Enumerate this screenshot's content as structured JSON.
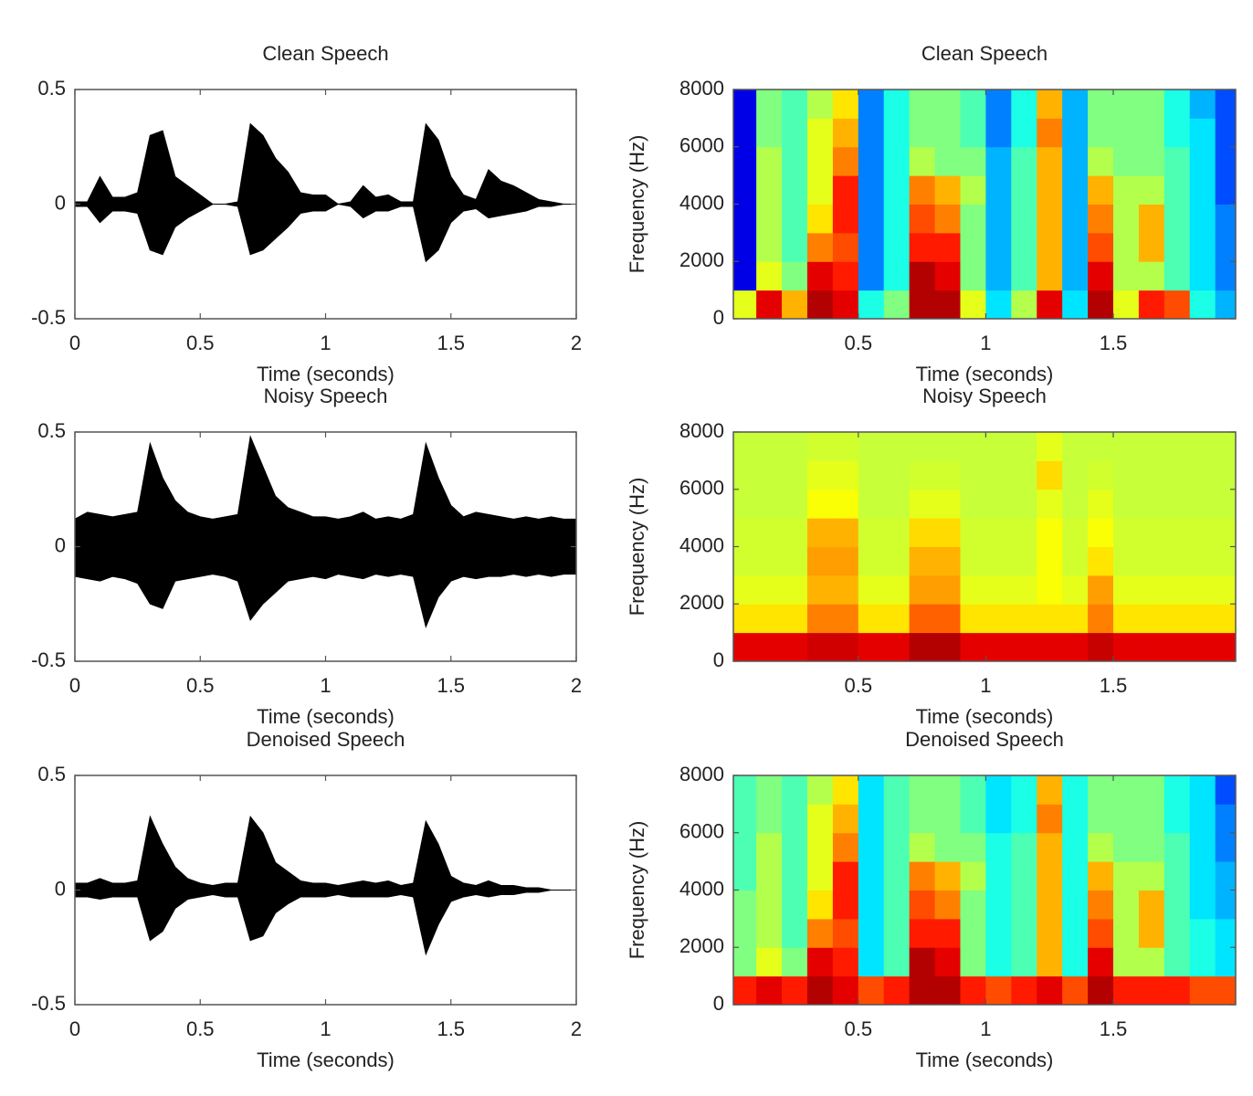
{
  "chart_data": [
    {
      "type": "area",
      "title": "Clean Speech",
      "xlabel": "Time (seconds)",
      "x": [
        0,
        0.05,
        0.1,
        0.15,
        0.2,
        0.25,
        0.3,
        0.35,
        0.4,
        0.45,
        0.5,
        0.55,
        0.6,
        0.65,
        0.7,
        0.75,
        0.8,
        0.85,
        0.9,
        0.95,
        1,
        1.05,
        1.1,
        1.15,
        1.2,
        1.25,
        1.3,
        1.35,
        1.4,
        1.45,
        1.5,
        1.55,
        1.6,
        1.65,
        1.7,
        1.75,
        1.8,
        1.85,
        1.9,
        1.95,
        2
      ],
      "series": [
        {
          "color": "#000000",
          "values": [
            0.01,
            0.01,
            0.12,
            0.03,
            0.03,
            0.05,
            0.3,
            0.32,
            0.12,
            0.08,
            0.04,
            0,
            0,
            0.01,
            0.35,
            0.3,
            0.2,
            0.14,
            0.05,
            0.04,
            0.04,
            0,
            0.01,
            0.08,
            0.03,
            0.04,
            0.01,
            0.01,
            0.35,
            0.28,
            0.12,
            0.04,
            0.02,
            0.15,
            0.1,
            0.08,
            0.05,
            0.02,
            0.01,
            0,
            0
          ]
        },
        {
          "color": "#000000",
          "values": [
            -0.01,
            -0.01,
            -0.08,
            -0.03,
            -0.03,
            -0.04,
            -0.2,
            -0.22,
            -0.1,
            -0.06,
            -0.03,
            0,
            0,
            -0.01,
            -0.22,
            -0.2,
            -0.15,
            -0.1,
            -0.04,
            -0.03,
            -0.03,
            0,
            -0.01,
            -0.06,
            -0.03,
            -0.03,
            -0.01,
            -0.01,
            -0.25,
            -0.2,
            -0.08,
            -0.03,
            -0.02,
            -0.06,
            -0.05,
            -0.04,
            -0.03,
            -0.01,
            -0.01,
            0,
            0
          ]
        }
      ],
      "xlim": [
        0,
        2
      ],
      "xticks": [
        0,
        0.5,
        1,
        1.5,
        2
      ],
      "ylim": [
        -0.5,
        0.5
      ],
      "yticks": [
        -0.5,
        0,
        0.5
      ]
    },
    {
      "type": "heatmap",
      "title": "Clean Speech",
      "xlabel": "Time (seconds)",
      "ylabel": "Frequency (Hz)",
      "colormap": "jet",
      "x": [
        0.05,
        0.15,
        0.25,
        0.35,
        0.45,
        0.55,
        0.65,
        0.75,
        0.85,
        0.95,
        1.05,
        1.15,
        1.25,
        1.35,
        1.45,
        1.55,
        1.65,
        1.75,
        1.85,
        1.95
      ],
      "y": [
        500,
        1500,
        2500,
        3500,
        4500,
        5500,
        6500,
        7500
      ],
      "values": [
        [
          0.6,
          0.1,
          0.1,
          0.1,
          0.1,
          0.1,
          0.1,
          0.1
        ],
        [
          0.9,
          0.6,
          0.55,
          0.55,
          0.55,
          0.55,
          0.5,
          0.5
        ],
        [
          0.7,
          0.5,
          0.45,
          0.45,
          0.45,
          0.45,
          0.45,
          0.45
        ],
        [
          0.95,
          0.9,
          0.75,
          0.65,
          0.6,
          0.6,
          0.6,
          0.55
        ],
        [
          0.9,
          0.85,
          0.8,
          0.85,
          0.85,
          0.75,
          0.7,
          0.65
        ],
        [
          0.4,
          0.25,
          0.25,
          0.25,
          0.25,
          0.25,
          0.25,
          0.25
        ],
        [
          0.5,
          0.4,
          0.4,
          0.4,
          0.4,
          0.4,
          0.4,
          0.4
        ],
        [
          0.95,
          0.95,
          0.85,
          0.8,
          0.75,
          0.55,
          0.5,
          0.5
        ],
        [
          0.95,
          0.9,
          0.85,
          0.75,
          0.7,
          0.5,
          0.5,
          0.5
        ],
        [
          0.6,
          0.5,
          0.5,
          0.5,
          0.55,
          0.5,
          0.45,
          0.45
        ],
        [
          0.35,
          0.3,
          0.3,
          0.3,
          0.3,
          0.3,
          0.25,
          0.25
        ],
        [
          0.55,
          0.45,
          0.45,
          0.45,
          0.45,
          0.45,
          0.4,
          0.4
        ],
        [
          0.9,
          0.7,
          0.7,
          0.7,
          0.7,
          0.7,
          0.75,
          0.7
        ],
        [
          0.35,
          0.3,
          0.3,
          0.3,
          0.3,
          0.3,
          0.3,
          0.3
        ],
        [
          0.95,
          0.9,
          0.8,
          0.75,
          0.7,
          0.55,
          0.5,
          0.5
        ],
        [
          0.6,
          0.55,
          0.55,
          0.55,
          0.55,
          0.5,
          0.5,
          0.5
        ],
        [
          0.85,
          0.55,
          0.7,
          0.7,
          0.55,
          0.5,
          0.5,
          0.5
        ],
        [
          0.8,
          0.45,
          0.45,
          0.45,
          0.45,
          0.45,
          0.4,
          0.4
        ],
        [
          0.4,
          0.35,
          0.35,
          0.35,
          0.35,
          0.35,
          0.35,
          0.3
        ],
        [
          0.3,
          0.25,
          0.25,
          0.25,
          0.2,
          0.2,
          0.2,
          0.2
        ]
      ],
      "xlim": [
        0.01,
        1.98
      ],
      "xticks": [
        0.5,
        1,
        1.5
      ],
      "ylim": [
        0,
        8000
      ],
      "yticks": [
        0,
        2000,
        4000,
        6000,
        8000
      ]
    },
    {
      "type": "area",
      "title": "Noisy Speech",
      "xlabel": "Time (seconds)",
      "x": [
        0,
        0.05,
        0.1,
        0.15,
        0.2,
        0.25,
        0.3,
        0.35,
        0.4,
        0.45,
        0.5,
        0.55,
        0.6,
        0.65,
        0.7,
        0.75,
        0.8,
        0.85,
        0.9,
        0.95,
        1,
        1.05,
        1.1,
        1.15,
        1.2,
        1.25,
        1.3,
        1.35,
        1.4,
        1.45,
        1.5,
        1.55,
        1.6,
        1.65,
        1.7,
        1.75,
        1.8,
        1.85,
        1.9,
        1.95,
        2
      ],
      "series": [
        {
          "color": "#000000",
          "values": [
            0.12,
            0.15,
            0.14,
            0.13,
            0.14,
            0.15,
            0.45,
            0.3,
            0.2,
            0.15,
            0.13,
            0.12,
            0.13,
            0.14,
            0.48,
            0.35,
            0.22,
            0.17,
            0.15,
            0.13,
            0.13,
            0.12,
            0.13,
            0.15,
            0.12,
            0.13,
            0.12,
            0.14,
            0.45,
            0.3,
            0.18,
            0.13,
            0.15,
            0.14,
            0.13,
            0.12,
            0.13,
            0.12,
            0.13,
            0.12,
            0.12
          ]
        },
        {
          "color": "#000000",
          "values": [
            -0.13,
            -0.14,
            -0.15,
            -0.13,
            -0.14,
            -0.16,
            -0.25,
            -0.27,
            -0.15,
            -0.14,
            -0.13,
            -0.12,
            -0.13,
            -0.15,
            -0.32,
            -0.25,
            -0.2,
            -0.15,
            -0.14,
            -0.13,
            -0.14,
            -0.12,
            -0.13,
            -0.14,
            -0.12,
            -0.13,
            -0.12,
            -0.13,
            -0.35,
            -0.22,
            -0.15,
            -0.13,
            -0.14,
            -0.13,
            -0.13,
            -0.12,
            -0.13,
            -0.12,
            -0.13,
            -0.12,
            -0.12
          ]
        }
      ],
      "xlim": [
        0,
        2
      ],
      "xticks": [
        0,
        0.5,
        1,
        1.5,
        2
      ],
      "ylim": [
        -0.5,
        0.5
      ],
      "yticks": [
        -0.5,
        0,
        0.5
      ]
    },
    {
      "type": "heatmap",
      "title": "Noisy Speech",
      "xlabel": "Time (seconds)",
      "ylabel": "Frequency (Hz)",
      "colormap": "jet",
      "x": [
        0.05,
        0.15,
        0.25,
        0.35,
        0.45,
        0.55,
        0.65,
        0.75,
        0.85,
        0.95,
        1.05,
        1.15,
        1.25,
        1.35,
        1.45,
        1.55,
        1.65,
        1.75,
        1.85,
        1.95
      ],
      "y": [
        500,
        1500,
        2500,
        3500,
        4500,
        5500,
        6500,
        7500
      ],
      "values": [
        [
          0.9,
          0.65,
          0.6,
          0.58,
          0.58,
          0.57,
          0.57,
          0.57
        ],
        [
          0.9,
          0.65,
          0.6,
          0.58,
          0.58,
          0.57,
          0.57,
          0.57
        ],
        [
          0.9,
          0.65,
          0.6,
          0.58,
          0.58,
          0.57,
          0.57,
          0.57
        ],
        [
          0.92,
          0.75,
          0.7,
          0.72,
          0.7,
          0.62,
          0.6,
          0.58
        ],
        [
          0.92,
          0.75,
          0.7,
          0.72,
          0.7,
          0.62,
          0.6,
          0.58
        ],
        [
          0.9,
          0.65,
          0.6,
          0.58,
          0.58,
          0.57,
          0.57,
          0.57
        ],
        [
          0.9,
          0.65,
          0.6,
          0.58,
          0.58,
          0.57,
          0.57,
          0.57
        ],
        [
          0.95,
          0.78,
          0.72,
          0.7,
          0.66,
          0.6,
          0.58,
          0.57
        ],
        [
          0.95,
          0.78,
          0.72,
          0.7,
          0.66,
          0.6,
          0.58,
          0.57
        ],
        [
          0.9,
          0.65,
          0.6,
          0.58,
          0.58,
          0.57,
          0.57,
          0.57
        ],
        [
          0.9,
          0.65,
          0.6,
          0.58,
          0.58,
          0.57,
          0.57,
          0.57
        ],
        [
          0.9,
          0.65,
          0.6,
          0.58,
          0.58,
          0.57,
          0.57,
          0.57
        ],
        [
          0.9,
          0.65,
          0.62,
          0.62,
          0.62,
          0.6,
          0.66,
          0.6
        ],
        [
          0.9,
          0.65,
          0.6,
          0.58,
          0.58,
          0.57,
          0.57,
          0.57
        ],
        [
          0.93,
          0.75,
          0.72,
          0.65,
          0.62,
          0.6,
          0.58,
          0.57
        ],
        [
          0.9,
          0.65,
          0.6,
          0.58,
          0.58,
          0.57,
          0.57,
          0.57
        ],
        [
          0.9,
          0.65,
          0.6,
          0.58,
          0.58,
          0.57,
          0.57,
          0.57
        ],
        [
          0.9,
          0.65,
          0.6,
          0.58,
          0.58,
          0.57,
          0.57,
          0.57
        ],
        [
          0.9,
          0.65,
          0.6,
          0.58,
          0.58,
          0.57,
          0.57,
          0.57
        ],
        [
          0.9,
          0.65,
          0.6,
          0.58,
          0.58,
          0.57,
          0.57,
          0.57
        ]
      ],
      "xlim": [
        0.01,
        1.98
      ],
      "xticks": [
        0.5,
        1,
        1.5
      ],
      "ylim": [
        0,
        8000
      ],
      "yticks": [
        0,
        2000,
        4000,
        6000,
        8000
      ]
    },
    {
      "type": "area",
      "title": "Denoised Speech",
      "xlabel": "Time (seconds)",
      "x": [
        0,
        0.05,
        0.1,
        0.15,
        0.2,
        0.25,
        0.3,
        0.35,
        0.4,
        0.45,
        0.5,
        0.55,
        0.6,
        0.65,
        0.7,
        0.75,
        0.8,
        0.85,
        0.9,
        0.95,
        1,
        1.05,
        1.1,
        1.15,
        1.2,
        1.25,
        1.3,
        1.35,
        1.4,
        1.45,
        1.5,
        1.55,
        1.6,
        1.65,
        1.7,
        1.75,
        1.8,
        1.85,
        1.9,
        1.95,
        2
      ],
      "series": [
        {
          "color": "#000000",
          "values": [
            0.03,
            0.03,
            0.05,
            0.03,
            0.03,
            0.04,
            0.32,
            0.2,
            0.1,
            0.05,
            0.03,
            0.02,
            0.03,
            0.03,
            0.32,
            0.25,
            0.12,
            0.08,
            0.04,
            0.03,
            0.03,
            0.02,
            0.03,
            0.04,
            0.03,
            0.04,
            0.02,
            0.03,
            0.3,
            0.2,
            0.06,
            0.03,
            0.02,
            0.04,
            0.02,
            0.02,
            0.01,
            0.01,
            0,
            0,
            0
          ]
        },
        {
          "color": "#000000",
          "values": [
            -0.03,
            -0.03,
            -0.04,
            -0.03,
            -0.03,
            -0.03,
            -0.22,
            -0.18,
            -0.08,
            -0.04,
            -0.03,
            -0.02,
            -0.03,
            -0.03,
            -0.22,
            -0.2,
            -0.1,
            -0.06,
            -0.03,
            -0.03,
            -0.03,
            -0.02,
            -0.03,
            -0.03,
            -0.03,
            -0.03,
            -0.02,
            -0.03,
            -0.28,
            -0.15,
            -0.05,
            -0.03,
            -0.02,
            -0.03,
            -0.02,
            -0.02,
            -0.01,
            -0.01,
            0,
            0,
            0
          ]
        }
      ],
      "xlim": [
        0,
        2
      ],
      "xticks": [
        0,
        0.5,
        1,
        1.5,
        2
      ],
      "ylim": [
        -0.5,
        0.5
      ],
      "yticks": [
        -0.5,
        0,
        0.5
      ]
    },
    {
      "type": "heatmap",
      "title": "Denoised Speech",
      "xlabel": "Time (seconds)",
      "ylabel": "Frequency (Hz)",
      "colormap": "jet",
      "x": [
        0.05,
        0.15,
        0.25,
        0.35,
        0.45,
        0.55,
        0.65,
        0.75,
        0.85,
        0.95,
        1.05,
        1.15,
        1.25,
        1.35,
        1.45,
        1.55,
        1.65,
        1.75,
        1.85,
        1.95
      ],
      "y": [
        500,
        1500,
        2500,
        3500,
        4500,
        5500,
        6500,
        7500
      ],
      "values": [
        [
          0.85,
          0.5,
          0.5,
          0.5,
          0.45,
          0.45,
          0.45,
          0.45
        ],
        [
          0.9,
          0.6,
          0.55,
          0.55,
          0.55,
          0.55,
          0.5,
          0.5
        ],
        [
          0.85,
          0.5,
          0.45,
          0.45,
          0.45,
          0.45,
          0.45,
          0.45
        ],
        [
          0.95,
          0.9,
          0.75,
          0.65,
          0.6,
          0.6,
          0.6,
          0.55
        ],
        [
          0.9,
          0.85,
          0.8,
          0.85,
          0.85,
          0.75,
          0.7,
          0.65
        ],
        [
          0.8,
          0.35,
          0.35,
          0.35,
          0.35,
          0.35,
          0.35,
          0.35
        ],
        [
          0.85,
          0.45,
          0.45,
          0.45,
          0.45,
          0.45,
          0.45,
          0.45
        ],
        [
          0.95,
          0.95,
          0.85,
          0.8,
          0.75,
          0.55,
          0.5,
          0.5
        ],
        [
          0.95,
          0.9,
          0.85,
          0.75,
          0.7,
          0.5,
          0.5,
          0.5
        ],
        [
          0.85,
          0.5,
          0.5,
          0.5,
          0.55,
          0.5,
          0.45,
          0.45
        ],
        [
          0.8,
          0.4,
          0.4,
          0.4,
          0.4,
          0.4,
          0.35,
          0.35
        ],
        [
          0.85,
          0.45,
          0.45,
          0.45,
          0.45,
          0.45,
          0.4,
          0.4
        ],
        [
          0.9,
          0.7,
          0.7,
          0.7,
          0.7,
          0.7,
          0.75,
          0.7
        ],
        [
          0.8,
          0.4,
          0.4,
          0.4,
          0.4,
          0.4,
          0.4,
          0.4
        ],
        [
          0.95,
          0.9,
          0.8,
          0.75,
          0.7,
          0.55,
          0.5,
          0.5
        ],
        [
          0.85,
          0.55,
          0.55,
          0.55,
          0.55,
          0.5,
          0.5,
          0.5
        ],
        [
          0.85,
          0.55,
          0.7,
          0.7,
          0.55,
          0.5,
          0.5,
          0.5
        ],
        [
          0.85,
          0.45,
          0.45,
          0.45,
          0.45,
          0.45,
          0.4,
          0.4
        ],
        [
          0.8,
          0.4,
          0.4,
          0.35,
          0.35,
          0.35,
          0.35,
          0.35
        ],
        [
          0.8,
          0.35,
          0.35,
          0.3,
          0.3,
          0.25,
          0.25,
          0.2
        ]
      ],
      "xlim": [
        0.01,
        1.98
      ],
      "xticks": [
        0.5,
        1,
        1.5
      ],
      "ylim": [
        0,
        8000
      ],
      "yticks": [
        0,
        2000,
        4000,
        6000,
        8000
      ]
    }
  ]
}
